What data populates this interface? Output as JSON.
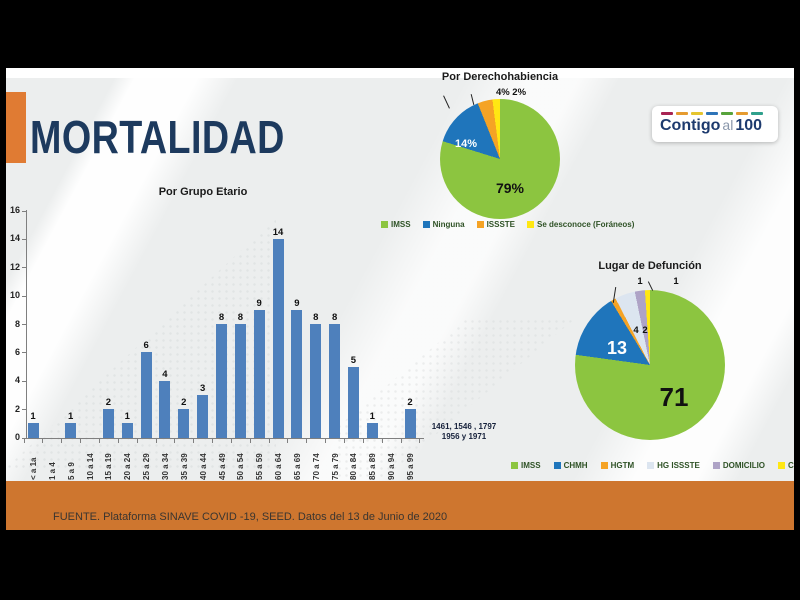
{
  "slide": {
    "title": "MORTALIDAD",
    "source": "FUENTE. Plataforma SINAVE COVID -19, SEED. Datos del 13 de Junio de 2020",
    "logo": {
      "part1": "Contigo",
      "part2": "al",
      "part3": "100",
      "dash_colors": [
        "#A82453",
        "#E59B2F",
        "#E5C52F",
        "#2E74B8",
        "#57A33B",
        "#E59B2F",
        "#2FA08C"
      ]
    },
    "colors": {
      "title_navy": "#1D3A5E",
      "accent_orange": "#E07B33",
      "band_orange": "#CE762F",
      "bar_blue": "#4E80BC"
    }
  },
  "chart_data": [
    {
      "type": "bar",
      "title": "Por Grupo Etario",
      "categories": [
        "< a 1a",
        "1 a 4",
        "5 a 9",
        "10 a 14",
        "15 a 19",
        "20 a 24",
        "25 a 29",
        "30 a 34",
        "35 a 39",
        "40 a 44",
        "45 a 49",
        "50 a 54",
        "55 a 59",
        "60 a 64",
        "65 a 69",
        "70 a 74",
        "75 a 79",
        "80 a 84",
        "85 a 89",
        "90 a 94",
        "95 a 99"
      ],
      "values": [
        1,
        0,
        1,
        0,
        2,
        1,
        6,
        4,
        2,
        3,
        8,
        8,
        9,
        14,
        9,
        8,
        8,
        5,
        1,
        0,
        2
      ],
      "ylim": [
        0,
        16
      ],
      "ytick_step": 2,
      "grid": false,
      "bar_color": "#4E80BC",
      "annotation": {
        "line1": "1461, 1546 , 1797",
        "line2": "1956 y 1971"
      }
    },
    {
      "type": "pie",
      "title": "Por Derechohabiencia",
      "labels": [
        "IMSS",
        "Ninguna",
        "ISSSTE",
        "Se desconoce (Foráneos)"
      ],
      "values": [
        79,
        14,
        4,
        2
      ],
      "colors": [
        "#8CC540",
        "#1F75BB",
        "#F5A325",
        "#FFE713"
      ],
      "legend_position": "bottom",
      "callouts": {
        "green": "79%",
        "blue": "14%",
        "outside": "4% 2%"
      }
    },
    {
      "type": "pie",
      "title": "Lugar de Defunción",
      "labels": [
        "IMSS",
        "CHMH",
        "HGTM",
        "HG ISSSTE",
        "DOMICILIO",
        "CLINICA PRIVADA"
      ],
      "values": [
        71,
        13,
        1,
        4,
        2,
        1
      ],
      "colors": [
        "#8CC540",
        "#1F75BB",
        "#F5A325",
        "#DCE5F0",
        "#AEA3C6",
        "#FFE713"
      ],
      "legend_position": "bottom",
      "callouts": {
        "green": "71",
        "blue": "13",
        "light": "4",
        "purple": "2",
        "hgtm": "1",
        "clinica": "1"
      }
    }
  ]
}
